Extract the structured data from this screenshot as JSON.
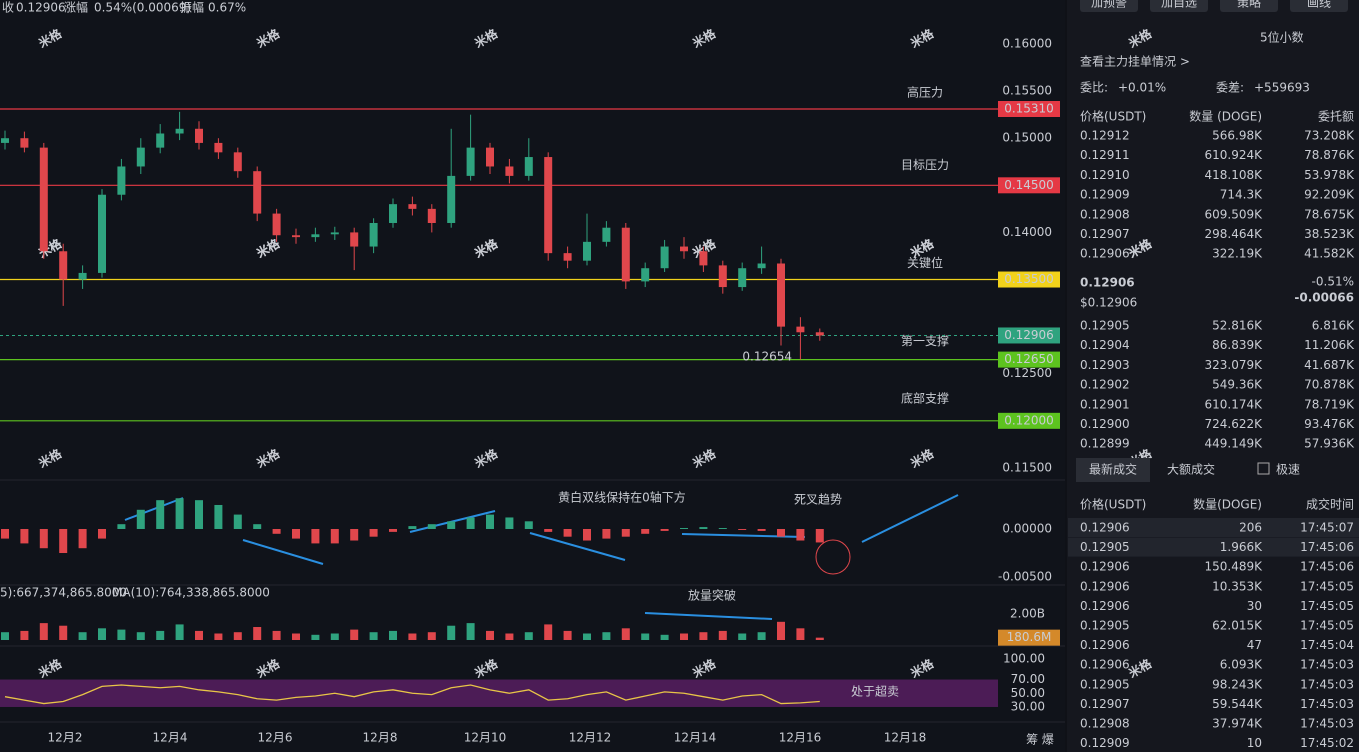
{
  "header": {
    "close_label": "收",
    "close": "0.12906",
    "change_label": "涨幅",
    "change": "0.54%(0.00069)",
    "amplitude_label": "振幅",
    "amplitude": "0.67%",
    "watermark": "米格",
    "corner": "筹 爆"
  },
  "chart_data": [
    {
      "type": "candlestick",
      "up_color": "#2fa37f",
      "down_color": "#e0474c",
      "open": [
        0.1495,
        0.15,
        0.149,
        0.138,
        0.135,
        0.1357,
        0.144,
        0.147,
        0.149,
        0.1505,
        0.151,
        0.1495,
        0.1485,
        0.1465,
        0.142,
        0.1397,
        0.1395,
        0.1398,
        0.14,
        0.1385,
        0.141,
        0.143,
        0.1425,
        0.141,
        0.146,
        0.149,
        0.147,
        0.146,
        0.148,
        0.1378,
        0.137,
        0.139,
        0.1405,
        0.1348,
        0.1362,
        0.1385,
        0.138,
        0.1365,
        0.1342,
        0.1362,
        0.1367,
        0.13,
        0.1294
      ],
      "high": [
        0.1508,
        0.1507,
        0.1495,
        0.1388,
        0.1365,
        0.1446,
        0.1478,
        0.15,
        0.1515,
        0.1528,
        0.1518,
        0.15,
        0.149,
        0.147,
        0.1425,
        0.1404,
        0.1405,
        0.1406,
        0.1405,
        0.1415,
        0.1436,
        0.1438,
        0.143,
        0.151,
        0.1525,
        0.1495,
        0.1478,
        0.15,
        0.1485,
        0.1385,
        0.142,
        0.1412,
        0.141,
        0.1368,
        0.1392,
        0.1395,
        0.1385,
        0.137,
        0.1368,
        0.1385,
        0.1372,
        0.131,
        0.1298
      ],
      "low": [
        0.1488,
        0.1485,
        0.1372,
        0.1322,
        0.134,
        0.1352,
        0.1434,
        0.1462,
        0.1484,
        0.1498,
        0.1488,
        0.1478,
        0.1458,
        0.1412,
        0.139,
        0.1388,
        0.139,
        0.1392,
        0.136,
        0.1378,
        0.1405,
        0.1418,
        0.14,
        0.1405,
        0.1455,
        0.1462,
        0.1452,
        0.1455,
        0.137,
        0.1362,
        0.1365,
        0.1385,
        0.134,
        0.1342,
        0.1358,
        0.1372,
        0.1358,
        0.1335,
        0.1338,
        0.1356,
        0.128,
        0.1265,
        0.1285
      ],
      "close": [
        0.15,
        0.149,
        0.138,
        0.135,
        0.1357,
        0.144,
        0.147,
        0.149,
        0.1505,
        0.151,
        0.1495,
        0.1485,
        0.1465,
        0.142,
        0.1397,
        0.1395,
        0.1398,
        0.14,
        0.1385,
        0.141,
        0.143,
        0.1425,
        0.141,
        0.146,
        0.149,
        0.147,
        0.146,
        0.148,
        0.1378,
        0.137,
        0.139,
        0.1405,
        0.1348,
        0.1362,
        0.1385,
        0.138,
        0.1365,
        0.1342,
        0.1362,
        0.1367,
        0.13,
        0.1294,
        0.12906
      ],
      "ylim": [
        0.11372,
        0.16467
      ],
      "yticks": [
        {
          "value": 0.16,
          "label": "0.16000"
        },
        {
          "value": 0.155,
          "label": "0.15500"
        },
        {
          "value": 0.15,
          "label": "0.15000"
        },
        {
          "value": 0.14,
          "label": "0.14000"
        },
        {
          "value": 0.125,
          "label": "0.12500"
        },
        {
          "value": 0.115,
          "label": "0.11500"
        }
      ],
      "levels": [
        {
          "value": 0.1531,
          "label": "0.15310",
          "name": "高压力",
          "color": "#e53945"
        },
        {
          "value": 0.145,
          "label": "0.14500",
          "name": "目标压力",
          "color": "#e53945"
        },
        {
          "value": 0.135,
          "label": "0.13500",
          "name": "关键位",
          "color": "#f2d21b"
        },
        {
          "value": 0.1265,
          "label": "0.12650",
          "name": "第一支撑",
          "color": "#5dc31f"
        },
        {
          "value": 0.12,
          "label": "0.12000",
          "name": "底部支撑",
          "color": "#5dc31f"
        }
      ],
      "current": {
        "value": 0.12906,
        "label": "0.12906",
        "color": "#2fa37f"
      },
      "low_marker": {
        "value": 0.12654,
        "label": "0.12654"
      },
      "date_labels": [
        "12月2",
        "12月4",
        "12月6",
        "12月8",
        "12月10",
        "12月12",
        "12月14",
        "12月16",
        "12月18"
      ]
    },
    {
      "type": "bar",
      "title": "黄白双线保持在0轴下方",
      "annotation": "死叉趋势",
      "up_color": "#2fa37f",
      "down_color": "#e0474c",
      "values": [
        -0.001,
        -0.0015,
        -0.002,
        -0.0025,
        -0.002,
        -0.001,
        0.0005,
        0.002,
        0.003,
        0.0032,
        0.003,
        0.0025,
        0.0015,
        0.0005,
        -0.0005,
        -0.001,
        -0.0015,
        -0.0015,
        -0.0012,
        -0.0008,
        -0.0003,
        0.0003,
        0.0005,
        0.0008,
        0.0012,
        0.0015,
        0.0012,
        0.0008,
        -0.0003,
        -0.0008,
        -0.0012,
        -0.001,
        -0.0008,
        -0.0005,
        -0.0002,
        0.0001,
        0.0002,
        0.0001,
        -0.0001,
        -0.0002,
        -0.0008,
        -0.0012,
        -0.0014
      ],
      "ylim": [
        -0.00583,
        0.0051
      ],
      "yticks": [
        {
          "value": 0,
          "label": "0.00000"
        },
        {
          "value": -0.005,
          "label": "-0.00500"
        }
      ]
    },
    {
      "type": "bar",
      "title": "放量突破",
      "ma5": "5):667,374,865.8000",
      "ma10": "MA(10):764,338,865.8000",
      "values": [
        600000000.0,
        700000000.0,
        1300000000.0,
        1100000000.0,
        600000000.0,
        900000000.0,
        800000000.0,
        600000000.0,
        700000000.0,
        1200000000.0,
        700000000.0,
        500000000.0,
        600000000.0,
        1000000000.0,
        700000000.0,
        500000000.0,
        400000000.0,
        500000000.0,
        800000000.0,
        600000000.0,
        700000000.0,
        500000000.0,
        600000000.0,
        1100000000.0,
        1300000000.0,
        700000000.0,
        500000000.0,
        600000000.0,
        1200000000.0,
        700000000.0,
        500000000.0,
        600000000.0,
        900000000.0,
        500000000.0,
        400000000.0,
        500000000.0,
        600000000.0,
        700000000.0,
        500000000.0,
        600000000.0,
        1400000000.0,
        900000000.0,
        180600000.0
      ],
      "ylim": [
        0,
        3850000000.0
      ],
      "yticks": [
        {
          "value": 2000000000.0,
          "label": "2.00B"
        }
      ],
      "current": {
        "value": 180600000,
        "label": "180.6M"
      }
    },
    {
      "type": "line",
      "title": "处于超卖",
      "color": "#e8c547",
      "values": [
        45,
        40,
        35,
        38,
        48,
        60,
        62,
        60,
        58,
        60,
        55,
        52,
        48,
        42,
        40,
        44,
        46,
        50,
        45,
        52,
        55,
        50,
        48,
        58,
        62,
        55,
        50,
        55,
        40,
        42,
        48,
        52,
        40,
        46,
        52,
        50,
        45,
        40,
        46,
        48,
        35,
        36,
        38
      ],
      "ylim": [
        11,
        116
      ],
      "yticks": [
        {
          "value": 100,
          "label": "100.00"
        },
        {
          "value": 70,
          "label": "70.00"
        },
        {
          "value": 50,
          "label": "50.00"
        },
        {
          "value": 30,
          "label": "30.00"
        }
      ]
    }
  ],
  "panel": {
    "buttons": [
      "加预警",
      "加自选",
      "策略",
      "画线"
    ],
    "decimals": "5位小数",
    "depth_link": "查看主力挂单情况 >",
    "ratio_label": "委比:",
    "ratio": "+0.01%",
    "diff_label": "委差:",
    "diff": "+559693",
    "book_headers": [
      "价格(USDT)",
      "数量 (DOGE)",
      "委托额"
    ],
    "asks": [
      [
        "0.12912",
        "566.98K",
        "73.208K"
      ],
      [
        "0.12911",
        "610.924K",
        "78.876K"
      ],
      [
        "0.12910",
        "418.108K",
        "53.978K"
      ],
      [
        "0.12909",
        "714.3K",
        "92.209K"
      ],
      [
        "0.12908",
        "609.509K",
        "78.675K"
      ],
      [
        "0.12907",
        "298.464K",
        "38.523K"
      ],
      [
        "0.12906",
        "322.19K",
        "41.582K"
      ]
    ],
    "last_price": "0.12906",
    "last_usd": "$0.12906",
    "last_pct": "-0.51%",
    "last_change": "-0.00066",
    "bids": [
      [
        "0.12905",
        "52.816K",
        "6.816K"
      ],
      [
        "0.12904",
        "86.839K",
        "11.206K"
      ],
      [
        "0.12903",
        "323.079K",
        "41.687K"
      ],
      [
        "0.12902",
        "549.36K",
        "70.878K"
      ],
      [
        "0.12901",
        "610.174K",
        "78.719K"
      ],
      [
        "0.12900",
        "724.622K",
        "93.476K"
      ],
      [
        "0.12899",
        "449.149K",
        "57.936K"
      ]
    ],
    "tabs": [
      "最新成交",
      "大额成交",
      "极速"
    ],
    "trade_headers": [
      "价格(USDT)",
      "数量(DOGE)",
      "成交时间"
    ],
    "trades": [
      [
        "0.12906",
        "206",
        "17:45:07"
      ],
      [
        "0.12905",
        "1.966K",
        "17:45:06"
      ],
      [
        "0.12906",
        "150.489K",
        "17:45:06"
      ],
      [
        "0.12906",
        "10.353K",
        "17:45:05"
      ],
      [
        "0.12906",
        "30",
        "17:45:05"
      ],
      [
        "0.12905",
        "62.015K",
        "17:45:05"
      ],
      [
        "0.12906",
        "47",
        "17:45:04"
      ],
      [
        "0.12906",
        "6.093K",
        "17:45:03"
      ],
      [
        "0.12905",
        "98.243K",
        "17:45:03"
      ],
      [
        "0.12907",
        "59.544K",
        "17:45:03"
      ],
      [
        "0.12908",
        "37.974K",
        "17:45:03"
      ],
      [
        "0.12909",
        "10",
        "17:45:02"
      ]
    ],
    "trade_colors": [
      "#2fa37f",
      "#e0474c",
      "#2fa37f",
      "#2fa37f",
      "#2fa37f",
      "#e0474c",
      "#2fa37f",
      "#2fa37f",
      "#e0474c",
      "#e0474c",
      "#e0474c",
      "#2fa37f"
    ]
  }
}
